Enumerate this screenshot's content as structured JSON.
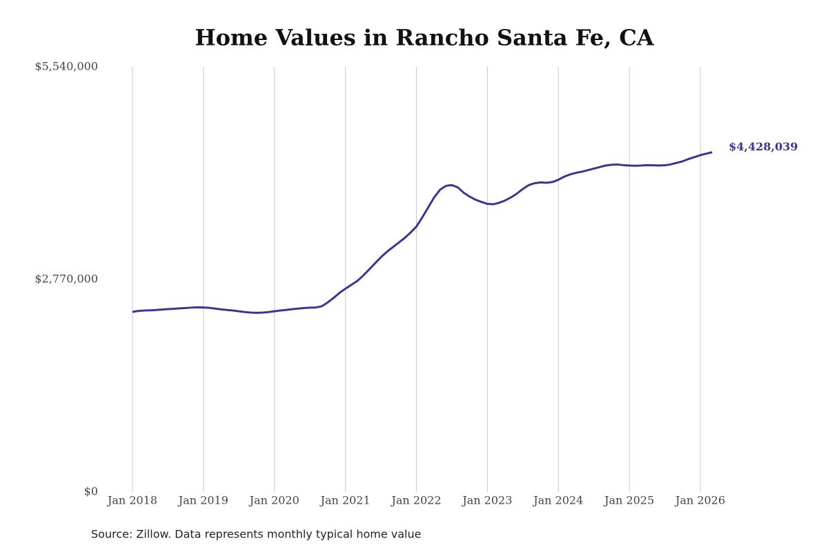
{
  "chart_data": {
    "type": "line",
    "title": "Home Values in Rancho Santa Fe, CA",
    "source": "Source: Zillow. Data represents monthly typical home value",
    "color": "#3b3591",
    "grid": true,
    "ylim": [
      0,
      5540000
    ],
    "yticks": [
      {
        "value": 0,
        "label": "$0"
      },
      {
        "value": 2770000,
        "label": "$2,770,000"
      },
      {
        "value": 5540000,
        "label": "$5,540,000"
      }
    ],
    "xticks": [
      {
        "value": "2018-01",
        "label": "Jan 2018"
      },
      {
        "value": "2019-01",
        "label": "Jan 2019"
      },
      {
        "value": "2020-01",
        "label": "Jan 2020"
      },
      {
        "value": "2021-01",
        "label": "Jan 2021"
      },
      {
        "value": "2022-01",
        "label": "Jan 2022"
      },
      {
        "value": "2023-01",
        "label": "Jan 2023"
      },
      {
        "value": "2024-01",
        "label": "Jan 2024"
      },
      {
        "value": "2025-01",
        "label": "Jan 2025"
      },
      {
        "value": "2026-01",
        "label": "Jan 2026"
      }
    ],
    "x": [
      "2018-01",
      "2018-02",
      "2018-03",
      "2018-04",
      "2018-05",
      "2018-06",
      "2018-07",
      "2018-08",
      "2018-09",
      "2018-10",
      "2018-11",
      "2018-12",
      "2019-01",
      "2019-02",
      "2019-03",
      "2019-04",
      "2019-05",
      "2019-06",
      "2019-07",
      "2019-08",
      "2019-09",
      "2019-10",
      "2019-11",
      "2019-12",
      "2020-01",
      "2020-02",
      "2020-03",
      "2020-04",
      "2020-05",
      "2020-06",
      "2020-07",
      "2020-08",
      "2020-09",
      "2020-10",
      "2020-11",
      "2020-12",
      "2021-01",
      "2021-02",
      "2021-03",
      "2021-04",
      "2021-05",
      "2021-06",
      "2021-07",
      "2021-08",
      "2021-09",
      "2021-10",
      "2021-11",
      "2021-12",
      "2022-01",
      "2022-02",
      "2022-03",
      "2022-04",
      "2022-05",
      "2022-06",
      "2022-07",
      "2022-08",
      "2022-09",
      "2022-10",
      "2022-11",
      "2022-12",
      "2023-01",
      "2023-02",
      "2023-03",
      "2023-04",
      "2023-05",
      "2023-06",
      "2023-07",
      "2023-08",
      "2023-09",
      "2023-10",
      "2023-11",
      "2023-12",
      "2024-01",
      "2024-02",
      "2024-03",
      "2024-04",
      "2024-05",
      "2024-06",
      "2024-07",
      "2024-08",
      "2024-09",
      "2024-10",
      "2024-11",
      "2024-12",
      "2025-01",
      "2025-02",
      "2025-03",
      "2025-04",
      "2025-05",
      "2025-06",
      "2025-07",
      "2025-08",
      "2025-09",
      "2025-10",
      "2025-11",
      "2025-12",
      "2026-01",
      "2026-02",
      "2026-03"
    ],
    "values": [
      2347000,
      2360000,
      2365000,
      2368000,
      2372000,
      2378000,
      2383000,
      2388000,
      2393000,
      2398000,
      2403000,
      2407000,
      2405000,
      2400000,
      2390000,
      2380000,
      2372000,
      2365000,
      2355000,
      2345000,
      2338000,
      2335000,
      2338000,
      2345000,
      2355000,
      2365000,
      2373000,
      2382000,
      2390000,
      2398000,
      2402000,
      2405000,
      2420000,
      2470000,
      2530000,
      2595000,
      2650000,
      2700000,
      2750000,
      2820000,
      2900000,
      2980000,
      3060000,
      3130000,
      3190000,
      3250000,
      3310000,
      3380000,
      3460000,
      3580000,
      3710000,
      3840000,
      3940000,
      3990000,
      4000000,
      3970000,
      3900000,
      3850000,
      3810000,
      3780000,
      3755000,
      3750000,
      3770000,
      3800000,
      3840000,
      3890000,
      3950000,
      4000000,
      4025000,
      4035000,
      4030000,
      4040000,
      4070000,
      4110000,
      4140000,
      4160000,
      4175000,
      4195000,
      4215000,
      4235000,
      4255000,
      4265000,
      4268000,
      4260000,
      4255000,
      4252000,
      4255000,
      4260000,
      4258000,
      4255000,
      4258000,
      4270000,
      4290000,
      4310000,
      4340000,
      4365000,
      4390000,
      4410000,
      4428039
    ],
    "value_labels": [
      null,
      null,
      null,
      null,
      null,
      null,
      null,
      null,
      null,
      null,
      null,
      null,
      null,
      null,
      null,
      null,
      null,
      null,
      null,
      null,
      null,
      null,
      null,
      null,
      null,
      null,
      null,
      null,
      null,
      null,
      null,
      null,
      null,
      null,
      null,
      null,
      null,
      null,
      null,
      null,
      null,
      null,
      null,
      null,
      null,
      null,
      null,
      null,
      null,
      null,
      null,
      null,
      null,
      null,
      null,
      null,
      null,
      null,
      null,
      null,
      null,
      null,
      null,
      null,
      null,
      null,
      null,
      null,
      null,
      null,
      null,
      null,
      null,
      null,
      null,
      null,
      null,
      null,
      null,
      null,
      null,
      null,
      null,
      null,
      null,
      null,
      null,
      null,
      null,
      null,
      null,
      null,
      null,
      null,
      null,
      null,
      null,
      null,
      "$4,428,039"
    ]
  }
}
